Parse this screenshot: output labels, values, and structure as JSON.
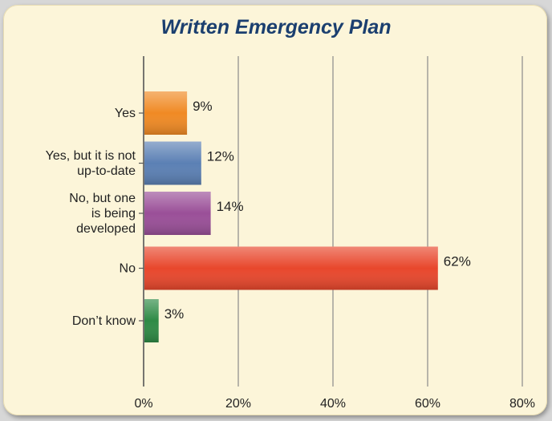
{
  "chart_data": {
    "type": "bar",
    "orientation": "horizontal",
    "title": "Written Emergency Plan",
    "categories": [
      [
        "Yes"
      ],
      [
        "Yes, but it is not",
        "up-to-date"
      ],
      [
        "No, but one",
        "is being",
        "developed"
      ],
      [
        "No"
      ],
      [
        "Don’t know"
      ]
    ],
    "values": [
      9,
      12,
      14,
      62,
      3
    ],
    "value_labels": [
      "9%",
      "12%",
      "14%",
      "62%",
      "3%"
    ],
    "bar_colors": [
      "#f08a24",
      "#5b80b4",
      "#9a4f98",
      "#e8472c",
      "#2e8a45"
    ],
    "xlim": [
      0,
      80
    ],
    "x_ticks": [
      0,
      20,
      40,
      60,
      80
    ],
    "x_tick_labels": [
      "0%",
      "20%",
      "40%",
      "60%",
      "80%"
    ],
    "grid": true,
    "legend": "none"
  }
}
